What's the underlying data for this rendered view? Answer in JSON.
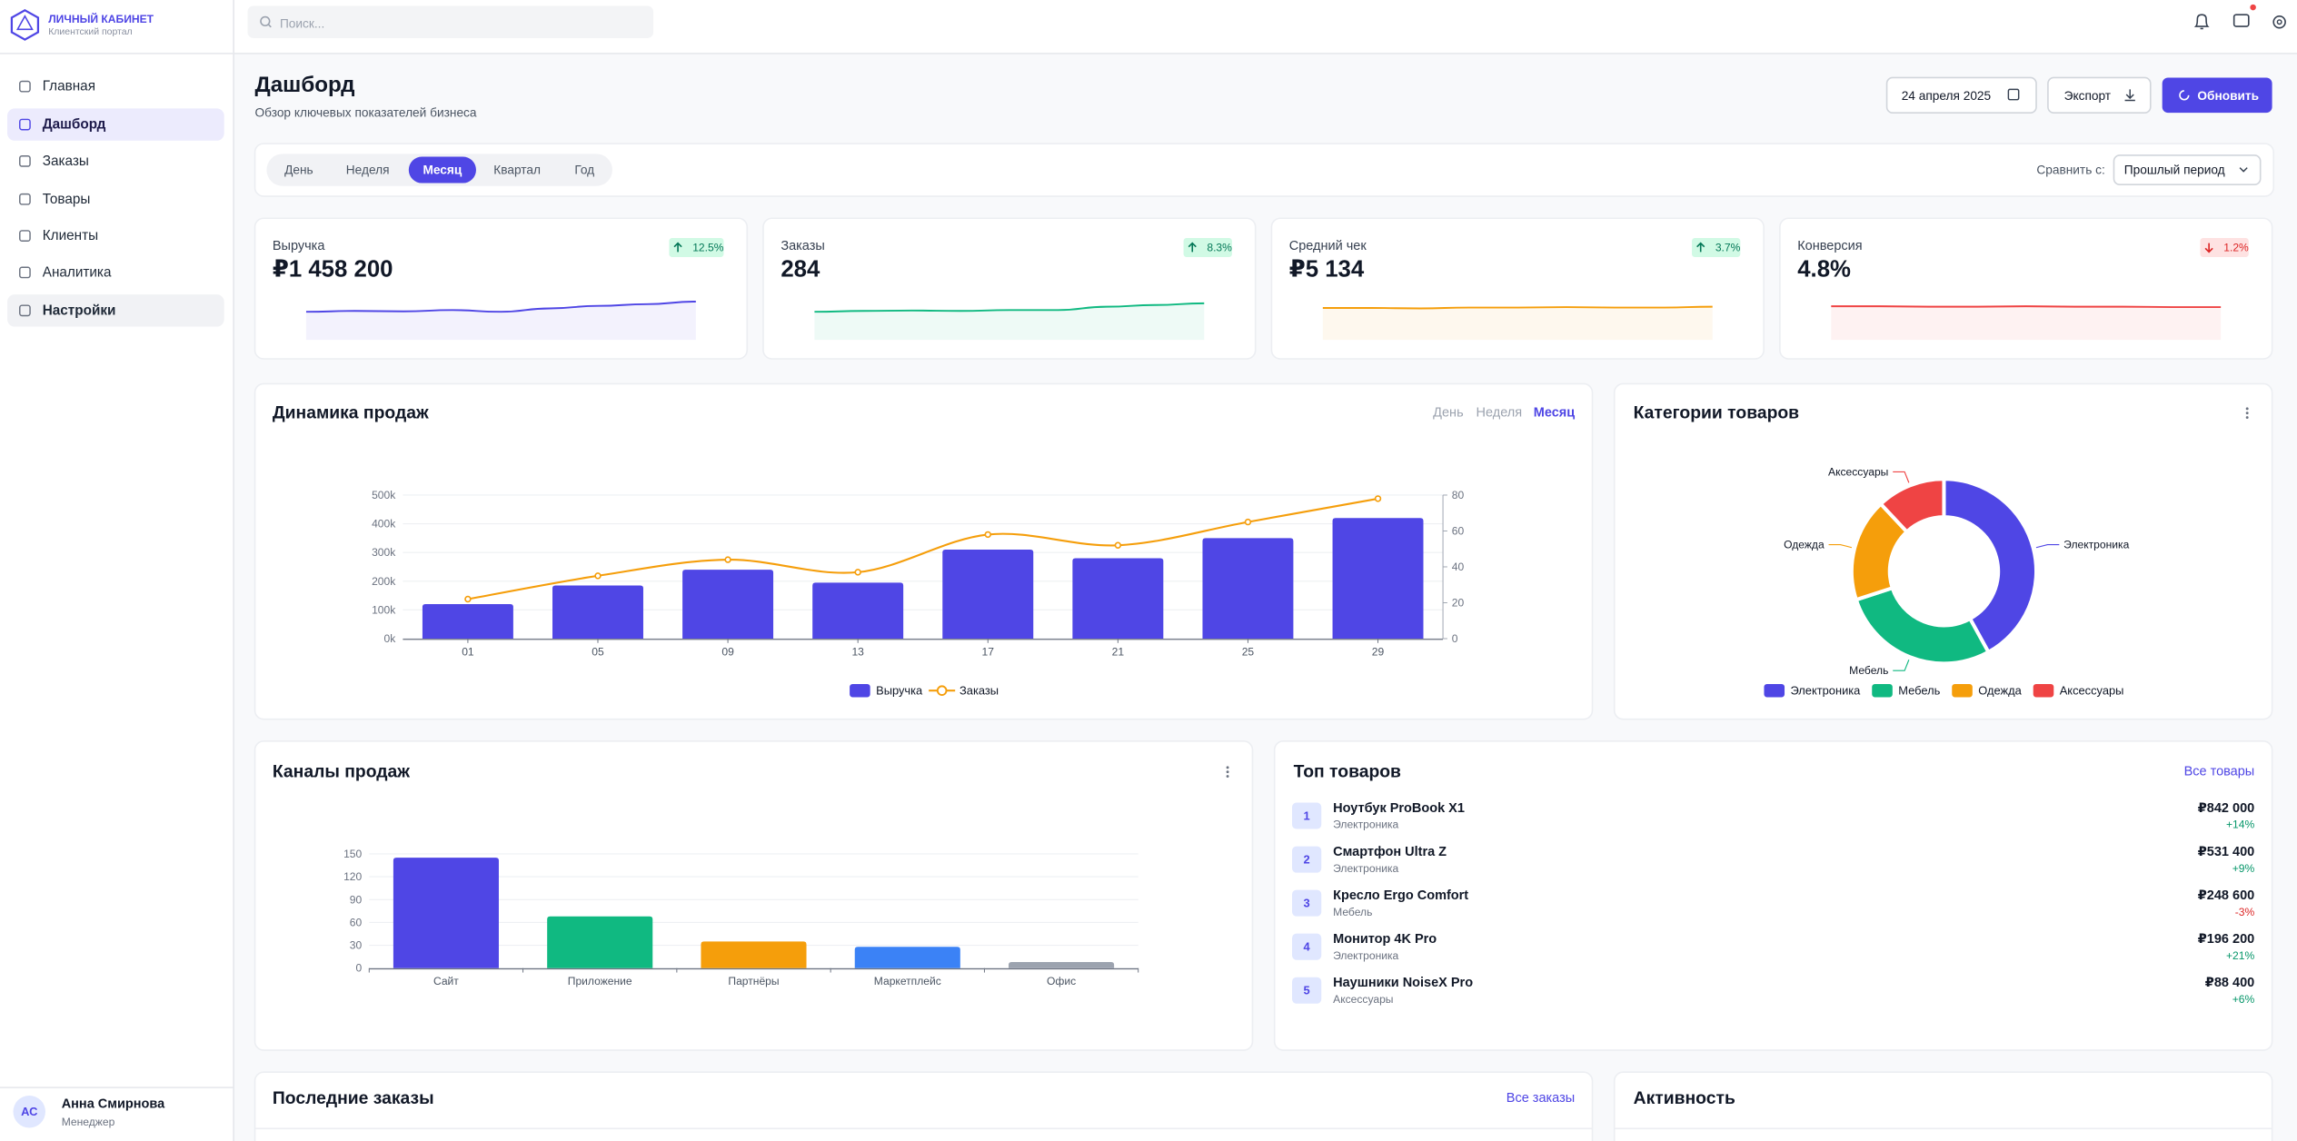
{
  "sidebar": {
    "brand": "ЛИЧНЫЙ КАБИНЕТ",
    "brand_subtitle": "Клиентский портал",
    "menu": [
      {
        "label": "Главная"
      },
      {
        "label": "Дашборд",
        "active": true
      },
      {
        "label": "Заказы"
      },
      {
        "label": "Товары"
      },
      {
        "label": "Клиенты"
      },
      {
        "label": "Аналитика"
      },
      {
        "label": "Настройки",
        "hover": true
      }
    ],
    "user": {
      "initials": "АС",
      "name": "Анна Смирнова",
      "role": "Менеджер"
    }
  },
  "search_placeholder": "Поиск...",
  "header": {
    "title": "Дашборд",
    "subtitle": "Обзор ключевых показателей бизнеса",
    "date": "24 апреля 2025",
    "export": "Экспорт",
    "refresh": "Обновить"
  },
  "period_tabs": {
    "items": [
      "День",
      "Неделя",
      "Месяц",
      "Квартал",
      "Год"
    ],
    "active": 2,
    "compare_label": "Сравнить с:",
    "compare_value": "Прошлый период"
  },
  "kpis": [
    {
      "label": "Выручка",
      "value": "₽1 458 200",
      "change": "12.5%",
      "trend": "up",
      "color": "#4f46e5",
      "sparkline": {
        "values": [
          6.6,
          6.8,
          6.7,
          7.0,
          6.6,
          7.4,
          8.0,
          8.4,
          9.0
        ],
        "ylim": [
          0,
          10
        ]
      }
    },
    {
      "label": "Заказы",
      "value": "284",
      "change": "8.3%",
      "trend": "up",
      "color": "#10b981",
      "sparkline": {
        "values": [
          6.6,
          6.8,
          6.9,
          6.8,
          7.0,
          7.0,
          7.8,
          8.2,
          8.6
        ],
        "ylim": [
          0,
          10
        ]
      }
    },
    {
      "label": "Средний чек",
      "value": "₽5 134",
      "change": "3.7%",
      "trend": "up",
      "color": "#f59e0b",
      "sparkline": {
        "values": [
          7.5,
          7.5,
          7.4,
          7.6,
          7.6,
          7.7,
          7.6,
          7.6,
          7.8
        ],
        "ylim": [
          0,
          10
        ]
      }
    },
    {
      "label": "Конверсия",
      "value": "4.8%",
      "change": "1.2%",
      "trend": "down",
      "color": "#ef4444",
      "sparkline": {
        "values": [
          7.9,
          7.9,
          7.8,
          7.8,
          7.9,
          7.8,
          7.8,
          7.7,
          7.7
        ],
        "ylim": [
          0,
          10
        ]
      }
    }
  ],
  "chart_data": [
    {
      "type": "combo",
      "title": "Динамика продаж",
      "tabs": [
        "День",
        "Неделя",
        "Месяц"
      ],
      "active_tab": 2,
      "categories": [
        "01",
        "05",
        "09",
        "13",
        "17",
        "21",
        "25",
        "29"
      ],
      "series": [
        {
          "name": "Выручка",
          "type": "bar",
          "color": "#4f46e5",
          "values": [
            120000,
            185000,
            240000,
            195000,
            310000,
            280000,
            350000,
            420000
          ]
        },
        {
          "name": "Заказы",
          "type": "line",
          "axis": "y2",
          "color": "#f59e0b",
          "values": [
            22,
            35,
            44,
            37,
            58,
            52,
            65,
            78
          ]
        }
      ],
      "ylim": [
        0,
        500000
      ],
      "yticks": [
        {
          "value": 0,
          "label": "0k"
        },
        {
          "value": 100000,
          "label": "100k"
        },
        {
          "value": 200000,
          "label": "200k"
        },
        {
          "value": 300000,
          "label": "300k"
        },
        {
          "value": 400000,
          "label": "400k"
        },
        {
          "value": 500000,
          "label": "500k"
        }
      ],
      "y2lim": [
        0,
        80
      ],
      "y2ticks": [
        0,
        20,
        40,
        60,
        80
      ],
      "grid": true
    },
    {
      "type": "donut",
      "title": "Категории товаров",
      "categories": [
        "Электроника",
        "Мебель",
        "Одежда",
        "Аксессуары"
      ],
      "values": [
        42,
        28,
        18,
        12
      ],
      "colors": [
        "#4f46e5",
        "#10b981",
        "#f59e0b",
        "#ef4444"
      ]
    },
    {
      "type": "bar",
      "title": "Каналы продаж",
      "categories": [
        "Сайт",
        "Приложение",
        "Партнёры",
        "Маркетплейс",
        "Офис"
      ],
      "values": [
        145,
        68,
        35,
        28,
        8
      ],
      "colors": [
        "#4f46e5",
        "#10b981",
        "#f59e0b",
        "#3b82f6",
        "#9ca3af"
      ],
      "ylim": [
        0,
        150
      ],
      "yticks": [
        0,
        30,
        60,
        90,
        120,
        150
      ],
      "grid": true
    }
  ],
  "top_products": {
    "title": "Топ товаров",
    "link": "Все товары",
    "items": [
      {
        "rank": 1,
        "name": "Ноутбук ProBook X1",
        "category": "Электроника",
        "amount": "₽842 000",
        "change": "+14%"
      },
      {
        "rank": 2,
        "name": "Смартфон Ultra Z",
        "category": "Электроника",
        "amount": "₽531 400",
        "change": "+9%"
      },
      {
        "rank": 3,
        "name": "Кресло Ergo Comfort",
        "category": "Мебель",
        "amount": "₽248 600",
        "change": "-3%"
      },
      {
        "rank": 4,
        "name": "Монитор 4K Pro",
        "category": "Электроника",
        "amount": "₽196 200",
        "change": "+21%"
      },
      {
        "rank": 5,
        "name": "Наушники NoiseX Pro",
        "category": "Аксессуары",
        "amount": "₽88 400",
        "change": "+6%"
      }
    ]
  },
  "recent_orders": {
    "title": "Последние заказы",
    "link": "Все заказы"
  },
  "activity": {
    "title": "Активность"
  }
}
